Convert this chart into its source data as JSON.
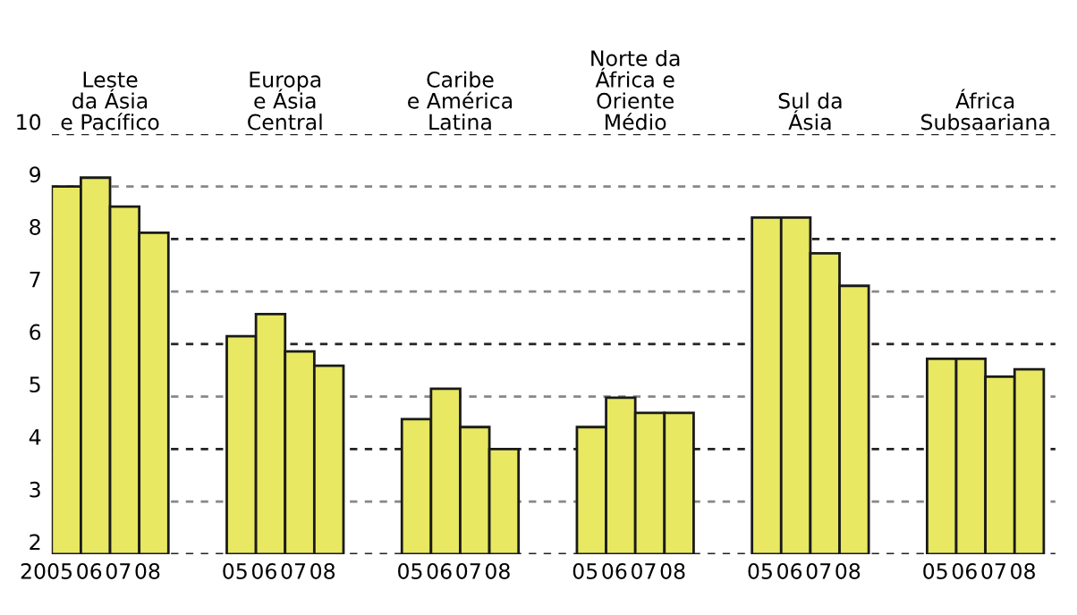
{
  "chart_data": {
    "type": "bar",
    "categories": [
      "2005",
      "06",
      "07",
      "08",
      null,
      null,
      "05",
      "06",
      "07",
      "08",
      null,
      null,
      "05",
      "06",
      "07",
      "08",
      null,
      null,
      "05",
      "06",
      "07",
      "08",
      null,
      null,
      "05",
      "06",
      "07",
      "08",
      null,
      null,
      "05",
      "06",
      "07",
      "08"
    ],
    "values": [
      9.0,
      9.17,
      8.62,
      8.12,
      null,
      null,
      6.15,
      6.57,
      5.86,
      5.59,
      null,
      null,
      4.57,
      5.15,
      4.42,
      4.0,
      null,
      null,
      4.42,
      4.98,
      4.69,
      4.69,
      null,
      null,
      8.41,
      8.41,
      7.73,
      7.11,
      null,
      null,
      5.72,
      5.72,
      5.38,
      5.52
    ],
    "color": "#e8e862",
    "ylim": [
      2,
      10
    ],
    "yticks": [
      2,
      3,
      4,
      5,
      6,
      7,
      8,
      9,
      10
    ],
    "grid": "y",
    "annotations": [
      "Leste\nda Ásia\ne Pacífico",
      "Europa\ne Ásia\nCentral",
      "Caribe\ne América\nLatina",
      "Norte da\nÁfrica e\nOriente\nMédio",
      "Sul da\nÁsia",
      "África\nSubsaariana"
    ]
  }
}
